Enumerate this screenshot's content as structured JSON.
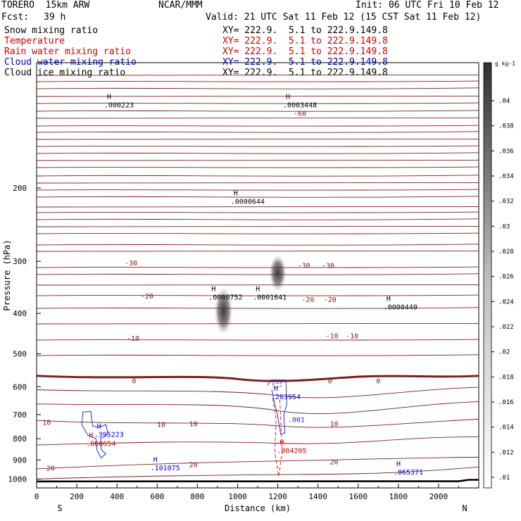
{
  "header": {
    "model": "TORERO  15km ARW",
    "org": "NCAR/MMM",
    "init": "Init: 06 UTC Fri 10 Feb 12",
    "fcst_label": "Fcst:",
    "fcst_value": "39 h",
    "valid": "Valid: 21 UTC Sat 11 Feb 12 (15 CST Sat 11 Feb 12)"
  },
  "fields": [
    {
      "name": "Snow mixing ratio",
      "xy": "XY= 222.9.  5.1 to 222.9.149.8",
      "color": "#000000"
    },
    {
      "name": "Temperature",
      "xy": "XY= 222.9.  5.1 to 222.9.149.8",
      "color": "#cc0000"
    },
    {
      "name": "Rain water mixing ratio",
      "xy": "XY= 222.9.  5.1 to 222.9.149.8",
      "color": "#cc0000"
    },
    {
      "name": "Cloud water mixing ratio",
      "xy": "XY= 222.9.  5.1 to 222.9.149.8",
      "color": "#0000cc"
    },
    {
      "name": "Cloud ice mixing ratio",
      "xy": "XY= 222.9.  5.1 to 222.9.149.8",
      "color": "#000000"
    }
  ],
  "chart_data": {
    "type": "contour",
    "xlabel": "Distance (km)",
    "ylabel": "Pressure (hPa)",
    "xlim": [
      0,
      2200
    ],
    "ylim": [
      1050,
      100
    ],
    "y_scale": "log",
    "x_ticks": [
      "0",
      "200",
      "400",
      "600",
      "800",
      "1000",
      "1200",
      "1400",
      "1600",
      "1800",
      "2000"
    ],
    "y_ticks": [
      "200",
      "300",
      "400",
      "500",
      "600",
      "700",
      "800",
      "900",
      "1000"
    ],
    "x_end_labels": {
      "left": "S",
      "right": "N"
    },
    "colorbar": {
      "unit": "g kg-1",
      "ticks": [
        ".04",
        ".038",
        ".036",
        ".034",
        ".032",
        ".03",
        ".028",
        ".026",
        ".024",
        ".022",
        ".02",
        ".018",
        ".016",
        ".014",
        ".012",
        ".01"
      ]
    },
    "temperature_contour_labels": [
      {
        "text": "-60",
        "x": 1310,
        "p": 132
      },
      {
        "text": "-30",
        "x": 470,
        "p": 302
      },
      {
        "text": "-30",
        "x": 1330,
        "p": 306
      },
      {
        "text": "-30",
        "x": 1450,
        "p": 306
      },
      {
        "text": "-20",
        "x": 550,
        "p": 363
      },
      {
        "text": "-20",
        "x": 1350,
        "p": 370
      },
      {
        "text": "-20",
        "x": 1460,
        "p": 370
      },
      {
        "text": "-10",
        "x": 480,
        "p": 458
      },
      {
        "text": "-10",
        "x": 1470,
        "p": 452
      },
      {
        "text": "-10",
        "x": 1570,
        "p": 452
      },
      {
        "text": "0",
        "x": 485,
        "p": 580
      },
      {
        "text": "0",
        "x": 1460,
        "p": 580
      },
      {
        "text": "0",
        "x": 1700,
        "p": 580
      },
      {
        "text": "10",
        "x": 50,
        "p": 730
      },
      {
        "text": "10",
        "x": 620,
        "p": 738
      },
      {
        "text": "10",
        "x": 780,
        "p": 735
      },
      {
        "text": "10",
        "x": 1480,
        "p": 735
      },
      {
        "text": "20",
        "x": 70,
        "p": 940
      },
      {
        "text": "20",
        "x": 780,
        "p": 922
      },
      {
        "text": "20",
        "x": 1480,
        "p": 908
      }
    ],
    "maxima": [
      {
        "label": "H",
        "value": ".0000644",
        "x": 980,
        "p": 215,
        "color": "#000000"
      },
      {
        "label": "H",
        "value": ".0000752",
        "x": 870,
        "p": 365,
        "color": "#000000"
      },
      {
        "label": "H",
        "value": ".0001641",
        "x": 1090,
        "p": 365,
        "color": "#000000"
      },
      {
        "label": "H",
        "value": ".0000440",
        "x": 1740,
        "p": 385,
        "color": "#000000"
      },
      {
        "label": "H",
        "value": ".000223",
        "x": 350,
        "p": 126,
        "color": "#000000"
      },
      {
        "label": "H",
        "value": ".0003448",
        "x": 1240,
        "p": 126,
        "color": "#000000"
      },
      {
        "label": "H",
        "value": ".263954",
        "x": 1180,
        "p": 633,
        "color": "#0000cc"
      },
      {
        "label": "H",
        "value": ".395223",
        "x": 300,
        "p": 780,
        "color": "#0000cc"
      },
      {
        "label": "H",
        "value": ".101075",
        "x": 580,
        "p": 938,
        "color": "#0000cc"
      },
      {
        "label": "H",
        "value": ".065371",
        "x": 1790,
        "p": 960,
        "color": "#0000cc"
      },
      {
        "label": "H",
        "value": ".000654",
        "x": 260,
        "p": 820,
        "color": "#cc0000"
      },
      {
        "label": "H",
        "value": ".004205",
        "x": 1210,
        "p": 853,
        "color": "#cc0000"
      }
    ],
    "cloud_water_label": {
      "text": ".001",
      "x": 1250,
      "p": 718
    }
  }
}
